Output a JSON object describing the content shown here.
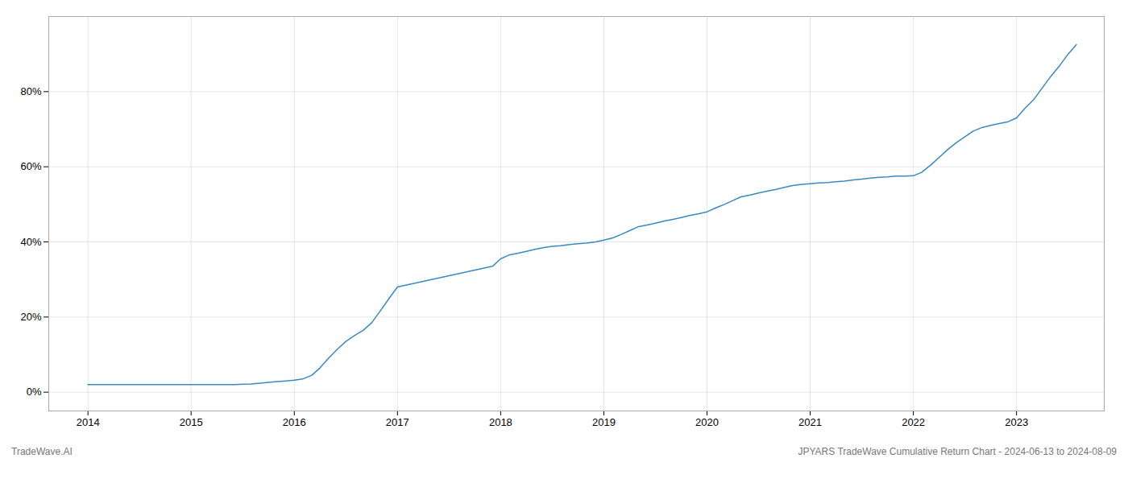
{
  "chart_data": {
    "type": "line",
    "annotations": [
      "TradeWave.AI",
      "JPYARS TradeWave Cumulative Return Chart - 2024-06-13 to 2024-08-09"
    ],
    "color": "#3a8abf",
    "x": [
      2014.0,
      2014.08,
      2014.17,
      2014.25,
      2014.33,
      2014.42,
      2014.5,
      2014.58,
      2014.67,
      2014.75,
      2014.83,
      2014.92,
      2015.0,
      2015.08,
      2015.17,
      2015.25,
      2015.33,
      2015.42,
      2015.5,
      2015.58,
      2015.67,
      2015.75,
      2015.83,
      2015.92,
      2016.0,
      2016.08,
      2016.17,
      2016.25,
      2016.33,
      2016.42,
      2016.5,
      2016.58,
      2016.67,
      2016.75,
      2016.83,
      2016.92,
      2017.0,
      2017.08,
      2017.17,
      2017.25,
      2017.33,
      2017.42,
      2017.5,
      2017.58,
      2017.67,
      2017.75,
      2017.83,
      2017.92,
      2018.0,
      2018.08,
      2018.17,
      2018.25,
      2018.33,
      2018.42,
      2018.5,
      2018.58,
      2018.67,
      2018.75,
      2018.83,
      2018.92,
      2019.0,
      2019.08,
      2019.17,
      2019.25,
      2019.33,
      2019.42,
      2019.5,
      2019.58,
      2019.67,
      2019.75,
      2019.83,
      2019.92,
      2020.0,
      2020.08,
      2020.17,
      2020.25,
      2020.33,
      2020.42,
      2020.5,
      2020.58,
      2020.67,
      2020.75,
      2020.83,
      2020.92,
      2021.0,
      2021.08,
      2021.17,
      2021.25,
      2021.33,
      2021.42,
      2021.5,
      2021.58,
      2021.67,
      2021.75,
      2021.83,
      2021.92,
      2022.0,
      2022.08,
      2022.17,
      2022.25,
      2022.33,
      2022.42,
      2022.5,
      2022.58,
      2022.67,
      2022.75,
      2022.83,
      2022.92,
      2023.0,
      2023.08,
      2023.17,
      2023.25,
      2023.33,
      2023.42,
      2023.5,
      2023.58
    ],
    "values": [
      2.0,
      2.0,
      2.0,
      2.0,
      2.0,
      2.0,
      2.0,
      2.0,
      2.0,
      2.0,
      2.0,
      2.0,
      2.0,
      2.0,
      2.0,
      2.0,
      2.0,
      2.0,
      2.1,
      2.2,
      2.4,
      2.6,
      2.8,
      3.0,
      3.2,
      3.5,
      4.5,
      6.5,
      9.0,
      11.5,
      13.5,
      15.0,
      16.5,
      18.5,
      21.5,
      25.0,
      28.0,
      28.5,
      29.0,
      29.5,
      30.0,
      30.5,
      31.0,
      31.5,
      32.0,
      32.5,
      33.0,
      33.5,
      35.5,
      36.5,
      37.0,
      37.5,
      38.0,
      38.5,
      38.8,
      39.0,
      39.3,
      39.5,
      39.7,
      40.0,
      40.5,
      41.0,
      42.0,
      43.0,
      44.0,
      44.5,
      45.0,
      45.5,
      46.0,
      46.5,
      47.0,
      47.5,
      48.0,
      49.0,
      50.0,
      51.0,
      52.0,
      52.5,
      53.0,
      53.5,
      54.0,
      54.5,
      55.0,
      55.3,
      55.5,
      55.7,
      55.8,
      56.0,
      56.2,
      56.5,
      56.7,
      57.0,
      57.2,
      57.3,
      57.5,
      57.5,
      57.6,
      58.5,
      60.5,
      62.5,
      64.5,
      66.5,
      68.0,
      69.5,
      70.5,
      71.0,
      71.5,
      72.0,
      73.0,
      75.5,
      78.0,
      81.0,
      84.0,
      87.0,
      90.0,
      92.5
    ],
    "xlim": [
      2013.62,
      2023.85
    ],
    "ylim": [
      -5,
      100
    ],
    "xticks": [
      2014,
      2015,
      2016,
      2017,
      2018,
      2019,
      2020,
      2021,
      2022,
      2023
    ],
    "yticks": [
      {
        "value": 0,
        "label": "0%"
      },
      {
        "value": 20,
        "label": "20%"
      },
      {
        "value": 40,
        "label": "40%"
      },
      {
        "value": 60,
        "label": "60%"
      },
      {
        "value": 80,
        "label": "80%"
      }
    ],
    "grid": true
  }
}
